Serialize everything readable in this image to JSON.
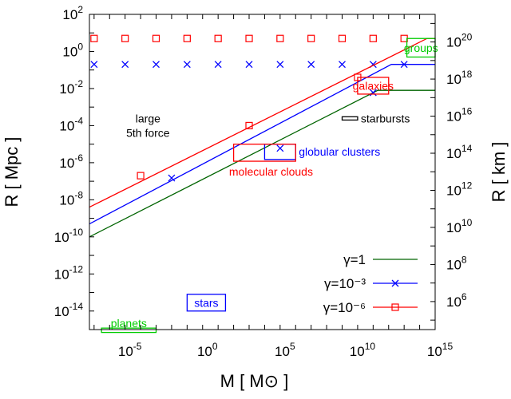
{
  "chart_data": {
    "type": "line",
    "xlabel": "M [ M⊙ ]",
    "ylabel_left": "R [ Mpc ]",
    "ylabel_right": "R [ km ]",
    "xscale": "log",
    "yscale": "log",
    "xlim": [
      5e-08,
      1000000000000000.0
    ],
    "ylim": [
      1e-15,
      100
    ],
    "ylim_right_km": [
      30857.0,
      3.0857e+21
    ],
    "x_ticks": [
      {
        "value": 1e-05,
        "base": "10",
        "exp": "-5"
      },
      {
        "value": 1,
        "base": "10",
        "exp": "0"
      },
      {
        "value": 100000.0,
        "base": "10",
        "exp": "5"
      },
      {
        "value": 10000000000.0,
        "base": "10",
        "exp": "10"
      },
      {
        "value": 1000000000000000.0,
        "base": "10",
        "exp": "15"
      }
    ],
    "y_ticks_left": [
      {
        "value": 100,
        "base": "10",
        "exp": "2"
      },
      {
        "value": 1,
        "base": "10",
        "exp": "0"
      },
      {
        "value": 0.01,
        "base": "10",
        "exp": "-2"
      },
      {
        "value": 0.0001,
        "base": "10",
        "exp": "-4"
      },
      {
        "value": 1e-06,
        "base": "10",
        "exp": "-6"
      },
      {
        "value": 1e-08,
        "base": "10",
        "exp": "-8"
      },
      {
        "value": 1e-10,
        "base": "10",
        "exp": "-10"
      },
      {
        "value": 1e-12,
        "base": "10",
        "exp": "-12"
      },
      {
        "value": 1e-14,
        "base": "10",
        "exp": "-14"
      }
    ],
    "y_ticks_right_km": [
      {
        "value": 1e+20,
        "base": "10",
        "exp": "20"
      },
      {
        "value": 1e+18,
        "base": "10",
        "exp": "18"
      },
      {
        "value": 1e+16,
        "base": "10",
        "exp": "16"
      },
      {
        "value": 100000000000000.0,
        "base": "10",
        "exp": "14"
      },
      {
        "value": 1000000000000.0,
        "base": "10",
        "exp": "12"
      },
      {
        "value": 10000000000.0,
        "base": "10",
        "exp": "10"
      },
      {
        "value": 100000000.0,
        "base": "10",
        "exp": "8"
      },
      {
        "value": 1000000.0,
        "base": "10",
        "exp": "6"
      }
    ],
    "series": [
      {
        "name": "γ=1",
        "color": "#006400",
        "marker": "none",
        "points": [
          [
            5e-08,
            1e-10
          ],
          [
            200000000000.0,
            0.008
          ],
          [
            1000000000000000.0,
            0.008
          ]
        ]
      },
      {
        "name": "γ=10⁻³",
        "color": "#0000ff",
        "marker": "x",
        "points": [
          [
            5e-08,
            5e-10
          ],
          [
            1500000000000.0,
            0.2
          ],
          [
            1000000000000000.0,
            0.2
          ]
        ],
        "marker_points": [
          [
            0.01,
            1.5e-07
          ],
          [
            100000.0,
            6e-06
          ],
          [
            100000000000.0,
            0.006
          ],
          [
            1e-07,
            0.2
          ],
          [
            1e-05,
            0.2
          ],
          [
            0.001,
            0.2
          ],
          [
            0.1,
            0.2
          ],
          [
            10,
            0.2
          ],
          [
            1000,
            0.2
          ],
          [
            100000.0,
            0.2
          ],
          [
            10000000.0,
            0.2
          ],
          [
            1000000000.0,
            0.2
          ],
          [
            100000000000.0,
            0.2
          ],
          [
            10000000000000.0,
            0.2
          ]
        ]
      },
      {
        "name": "γ=10⁻⁶",
        "color": "#ff0000",
        "marker": "square",
        "points": [
          [
            5e-08,
            4e-09
          ],
          [
            300000000000000.0,
            5
          ],
          [
            1000000000000000.0,
            5
          ]
        ],
        "marker_points": [
          [
            0.0001,
            2e-07
          ],
          [
            1000,
            0.0001
          ],
          [
            10000000000.0,
            0.04
          ],
          [
            1e-07,
            5
          ],
          [
            1e-05,
            5
          ],
          [
            0.001,
            5
          ],
          [
            0.1,
            5
          ],
          [
            10,
            5
          ],
          [
            1000,
            5
          ],
          [
            100000.0,
            5
          ],
          [
            10000000.0,
            5
          ],
          [
            1000000000.0,
            5
          ],
          [
            100000000000.0,
            5
          ],
          [
            10000000000000.0,
            5
          ]
        ]
      }
    ],
    "regions": [
      {
        "label": "groups",
        "color": "#00cc00",
        "x": [
          15000000000000.0,
          1000000000000000.0
        ],
        "y": [
          0.5,
          5
        ],
        "label_pos": "inside"
      },
      {
        "label": "galaxies",
        "color": "#ff0000",
        "x": [
          10000000000.0,
          1000000000000.0
        ],
        "y": [
          0.005,
          0.04
        ],
        "label_pos": "inside"
      },
      {
        "label": "starbursts",
        "color": "#000000",
        "x": [
          1000000000.0,
          10000000000.0
        ],
        "y": [
          0.0002,
          0.0003
        ],
        "label_pos": "right"
      },
      {
        "label": "globular clusters",
        "color": "#0000ff",
        "x": [
          10000.0,
          1000000.0
        ],
        "y": [
          1.5e-06,
          1e-05
        ],
        "label_pos": "right"
      },
      {
        "label": "molecular clouds",
        "color": "#ff0000",
        "x": [
          100,
          1000000.0
        ],
        "y": [
          1.2e-06,
          1e-05
        ],
        "label_pos": "below"
      },
      {
        "label": "stars",
        "color": "#0000ff",
        "x": [
          0.1,
          30
        ],
        "y": [
          1e-14,
          8e-14
        ],
        "label_pos": "inside"
      },
      {
        "label": "planets",
        "color": "#00cc00",
        "x": [
          3e-07,
          0.001
        ],
        "y": [
          7e-16,
          1.2e-15
        ],
        "label_pos": "above"
      }
    ],
    "annotations": [
      {
        "text": "large",
        "x": 0.0003,
        "y": 0.00015
      },
      {
        "text": "5th force",
        "x": 0.0003,
        "y": 2.5e-05
      }
    ],
    "legend_placement": "bottom-right",
    "grid": false
  }
}
